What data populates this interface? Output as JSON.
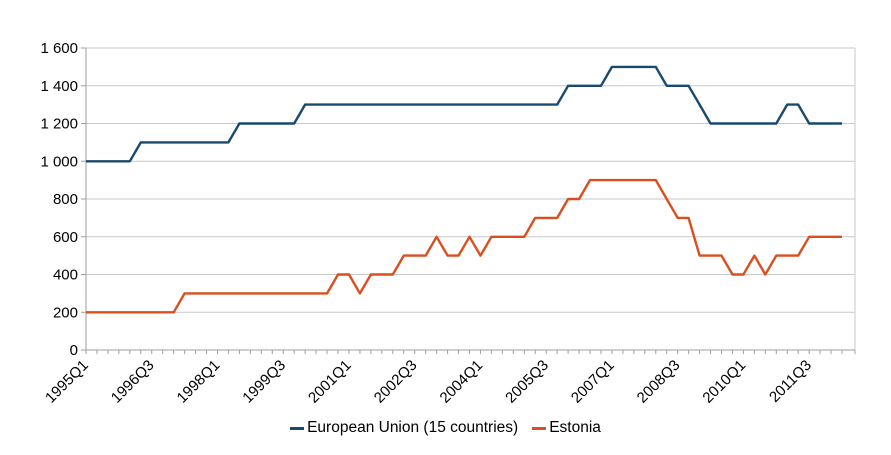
{
  "chart_data": {
    "type": "line",
    "title": "",
    "xlabel": "",
    "ylabel": "",
    "ylim": [
      0,
      1600
    ],
    "y_tick_step": 200,
    "grid": "horizontal",
    "legend_position": "bottom-center",
    "colors": {
      "background": "#ffffff",
      "gridline": "#c9c9c9",
      "axis": "#9e9e9e",
      "text": "#000000"
    },
    "y_tick_labels": [
      "0",
      "200",
      "400",
      "600",
      "800",
      "1 000",
      "1 200",
      "1 400",
      "1 600"
    ],
    "x_tick_labels": [
      {
        "i": 0,
        "label": "1995Q1"
      },
      {
        "i": 6,
        "label": "1996Q3"
      },
      {
        "i": 12,
        "label": "1998Q1"
      },
      {
        "i": 18,
        "label": "1999Q3"
      },
      {
        "i": 24,
        "label": "2001Q1"
      },
      {
        "i": 30,
        "label": "2002Q3"
      },
      {
        "i": 36,
        "label": "2004Q1"
      },
      {
        "i": 42,
        "label": "2005Q3"
      },
      {
        "i": 48,
        "label": "2007Q1"
      },
      {
        "i": 54,
        "label": "2008Q3"
      },
      {
        "i": 60,
        "label": "2010Q1"
      },
      {
        "i": 66,
        "label": "2011Q3"
      }
    ],
    "categories": [
      "1995Q1",
      "1995Q2",
      "1995Q3",
      "1995Q4",
      "1996Q1",
      "1996Q2",
      "1996Q3",
      "1996Q4",
      "1997Q1",
      "1997Q2",
      "1997Q3",
      "1997Q4",
      "1998Q1",
      "1998Q2",
      "1998Q3",
      "1998Q4",
      "1999Q1",
      "1999Q2",
      "1999Q3",
      "1999Q4",
      "2000Q1",
      "2000Q2",
      "2000Q3",
      "2000Q4",
      "2001Q1",
      "2001Q2",
      "2001Q3",
      "2001Q4",
      "2002Q1",
      "2002Q2",
      "2002Q3",
      "2002Q4",
      "2003Q1",
      "2003Q2",
      "2003Q3",
      "2003Q4",
      "2004Q1",
      "2004Q2",
      "2004Q3",
      "2004Q4",
      "2005Q1",
      "2005Q2",
      "2005Q3",
      "2005Q4",
      "2006Q1",
      "2006Q2",
      "2006Q3",
      "2006Q4",
      "2007Q1",
      "2007Q2",
      "2007Q3",
      "2007Q4",
      "2008Q1",
      "2008Q2",
      "2008Q3",
      "2008Q4",
      "2009Q1",
      "2009Q2",
      "2009Q3",
      "2009Q4",
      "2010Q1",
      "2010Q2",
      "2010Q3",
      "2010Q4",
      "2011Q1",
      "2011Q2",
      "2011Q3",
      "2011Q4",
      "2012Q1",
      "2012Q2"
    ],
    "series": [
      {
        "name": "European Union (15 countries)",
        "color": "#1a496e",
        "values": [
          1000,
          1000,
          1000,
          1000,
          1000,
          1100,
          1100,
          1100,
          1100,
          1100,
          1100,
          1100,
          1100,
          1100,
          1200,
          1200,
          1200,
          1200,
          1200,
          1200,
          1300,
          1300,
          1300,
          1300,
          1300,
          1300,
          1300,
          1300,
          1300,
          1300,
          1300,
          1300,
          1300,
          1300,
          1300,
          1300,
          1300,
          1300,
          1300,
          1300,
          1300,
          1300,
          1300,
          1300,
          1400,
          1400,
          1400,
          1400,
          1500,
          1500,
          1500,
          1500,
          1500,
          1400,
          1400,
          1400,
          1300,
          1200,
          1200,
          1200,
          1200,
          1200,
          1200,
          1200,
          1300,
          1300,
          1200,
          1200,
          1200,
          1200
        ]
      },
      {
        "name": "Estonia",
        "color": "#d94f1e",
        "values": [
          200,
          200,
          200,
          200,
          200,
          200,
          200,
          200,
          200,
          300,
          300,
          300,
          300,
          300,
          300,
          300,
          300,
          300,
          300,
          300,
          300,
          300,
          300,
          400,
          400,
          300,
          400,
          400,
          400,
          500,
          500,
          500,
          600,
          500,
          500,
          600,
          500,
          600,
          600,
          600,
          600,
          700,
          700,
          700,
          800,
          800,
          900,
          900,
          900,
          900,
          900,
          900,
          900,
          800,
          700,
          700,
          500,
          500,
          500,
          400,
          400,
          500,
          400,
          500,
          500,
          500,
          600,
          600,
          600,
          600
        ]
      }
    ]
  },
  "legend": {
    "items": [
      {
        "label": "European Union (15 countries)"
      },
      {
        "label": "Estonia"
      }
    ]
  }
}
